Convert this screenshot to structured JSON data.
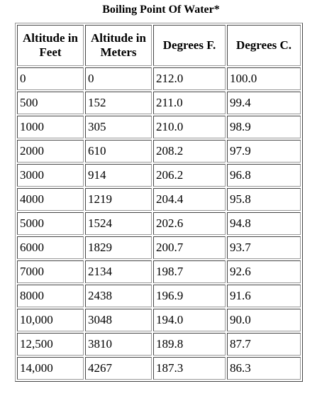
{
  "title": "Boiling Point Of Water*",
  "table": {
    "header": [
      "Altitude in Feet",
      "Altitude in Meters",
      "Degrees F.",
      "Degrees C."
    ],
    "rows": [
      [
        "0",
        "0",
        "212.0",
        "100.0"
      ],
      [
        "500",
        "152",
        "211.0",
        "99.4"
      ],
      [
        "1000",
        "305",
        "210.0",
        "98.9"
      ],
      [
        "2000",
        "610",
        "208.2",
        "97.9"
      ],
      [
        "3000",
        "914",
        "206.2",
        "96.8"
      ],
      [
        "4000",
        "1219",
        "204.4",
        "95.8"
      ],
      [
        "5000",
        "1524",
        "202.6",
        "94.8"
      ],
      [
        "6000",
        "1829",
        "200.7",
        "93.7"
      ],
      [
        "7000",
        "2134",
        "198.7",
        "92.6"
      ],
      [
        "8000",
        "2438",
        "196.9",
        "91.6"
      ],
      [
        "10,000",
        "3048",
        "194.0",
        "90.0"
      ],
      [
        "12,500",
        "3810",
        "189.8",
        "87.7"
      ],
      [
        "14,000",
        "4267",
        "187.3",
        "86.3"
      ]
    ]
  }
}
